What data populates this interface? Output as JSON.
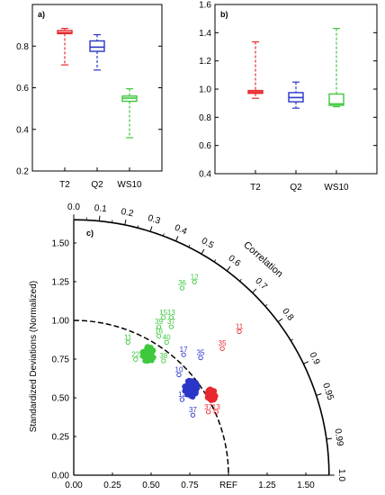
{
  "chart_data": [
    {
      "type": "box",
      "panel_label": "a)",
      "ylim": [
        0.2,
        1.0
      ],
      "yticks": [
        "0.2",
        "0.4",
        "0.6",
        "0.8"
      ],
      "categories": [
        "T2",
        "Q2",
        "WS10"
      ],
      "boxes": [
        {
          "name": "T2",
          "color": "#e8282d",
          "min": 0.71,
          "q1": 0.86,
          "median": 0.865,
          "q3": 0.875,
          "max": 0.885
        },
        {
          "name": "Q2",
          "color": "#2a36c8",
          "min": 0.685,
          "q1": 0.775,
          "median": 0.795,
          "q3": 0.825,
          "max": 0.855
        },
        {
          "name": "WS10",
          "color": "#3ec83e",
          "min": 0.36,
          "q1": 0.535,
          "median": 0.55,
          "q3": 0.56,
          "max": 0.595
        }
      ]
    },
    {
      "type": "box",
      "panel_label": "b)",
      "ylim": [
        0.4,
        1.6
      ],
      "yticks": [
        "0.4",
        "0.6",
        "0.8",
        "1.0",
        "1.2",
        "1.4",
        "1.6"
      ],
      "categories": [
        "T2",
        "Q2",
        "WS10"
      ],
      "boxes": [
        {
          "name": "T2",
          "color": "#e8282d",
          "min": 0.935,
          "q1": 0.97,
          "median": 0.98,
          "q3": 0.99,
          "max": 1.335
        },
        {
          "name": "Q2",
          "color": "#2a36c8",
          "min": 0.865,
          "q1": 0.91,
          "median": 0.94,
          "q3": 0.975,
          "max": 1.05
        },
        {
          "name": "WS10",
          "color": "#3ec83e",
          "min": 0.875,
          "q1": 0.885,
          "median": 0.895,
          "q3": 0.965,
          "max": 1.43
        }
      ]
    },
    {
      "type": "scatter",
      "panel_label": "c)",
      "subtype": "taylor-diagram",
      "ylabel": "Standardized Deviations (Normalized)",
      "arc_label": "Correlation",
      "std_ticks": [
        "0.25",
        "0.5",
        "0.75",
        "1.0",
        "1.25",
        "1.5"
      ],
      "x_tick_labels": [
        "0.00",
        "0.25",
        "0.50",
        "0.75",
        "REF",
        "1.25",
        "1.50"
      ],
      "y_tick_labels": [
        "0.00",
        "0.25",
        "0.50",
        "0.75",
        "1.00",
        "1.25",
        "1.50"
      ],
      "corr_labels": [
        "0.0",
        "0.1",
        "0.2",
        "0.3",
        "0.4",
        "0.5",
        "0.6",
        "0.7",
        "0.8",
        "0.9",
        "0.95",
        "0.99",
        "1.0"
      ],
      "max_std": 1.65,
      "reference_arc": 1.0,
      "series": [
        {
          "color": "#3ec83e",
          "cluster": {
            "x": 0.48,
            "y": 0.78,
            "n": 60,
            "spread": 0.04
          },
          "labeled_points": [
            {
              "label": "36",
              "x": 0.7,
              "y": 1.22
            },
            {
              "label": "12",
              "x": 0.78,
              "y": 1.26
            },
            {
              "label": "15",
              "x": 0.58,
              "y": 1.03
            },
            {
              "label": "13",
              "x": 0.63,
              "y": 1.03
            },
            {
              "label": "39",
              "x": 0.55,
              "y": 0.97
            },
            {
              "label": "37",
              "x": 0.63,
              "y": 0.97
            },
            {
              "label": "16",
              "x": 0.55,
              "y": 0.91
            },
            {
              "label": "40",
              "x": 0.6,
              "y": 0.87
            },
            {
              "label": "11",
              "x": 0.35,
              "y": 0.87
            },
            {
              "label": "22",
              "x": 0.4,
              "y": 0.76
            },
            {
              "label": "38",
              "x": 0.58,
              "y": 0.75
            }
          ]
        },
        {
          "color": "#2a36c8",
          "cluster": {
            "x": 0.76,
            "y": 0.56,
            "n": 60,
            "spread": 0.045
          },
          "labeled_points": [
            {
              "label": "35",
              "x": 0.82,
              "y": 0.77
            },
            {
              "label": "17",
              "x": 0.71,
              "y": 0.79
            },
            {
              "label": "10",
              "x": 0.68,
              "y": 0.66
            },
            {
              "label": "12",
              "x": 0.7,
              "y": 0.5
            },
            {
              "label": "37",
              "x": 0.77,
              "y": 0.4
            }
          ]
        },
        {
          "color": "#e8282d",
          "cluster": {
            "x": 0.89,
            "y": 0.52,
            "n": 60,
            "spread": 0.03
          },
          "labeled_points": [
            {
              "label": "11",
              "x": 1.07,
              "y": 0.94
            },
            {
              "label": "35",
              "x": 0.96,
              "y": 0.83
            },
            {
              "label": "37",
              "x": 0.87,
              "y": 0.42
            },
            {
              "label": "13",
              "x": 0.92,
              "y": 0.42
            }
          ]
        }
      ]
    }
  ]
}
